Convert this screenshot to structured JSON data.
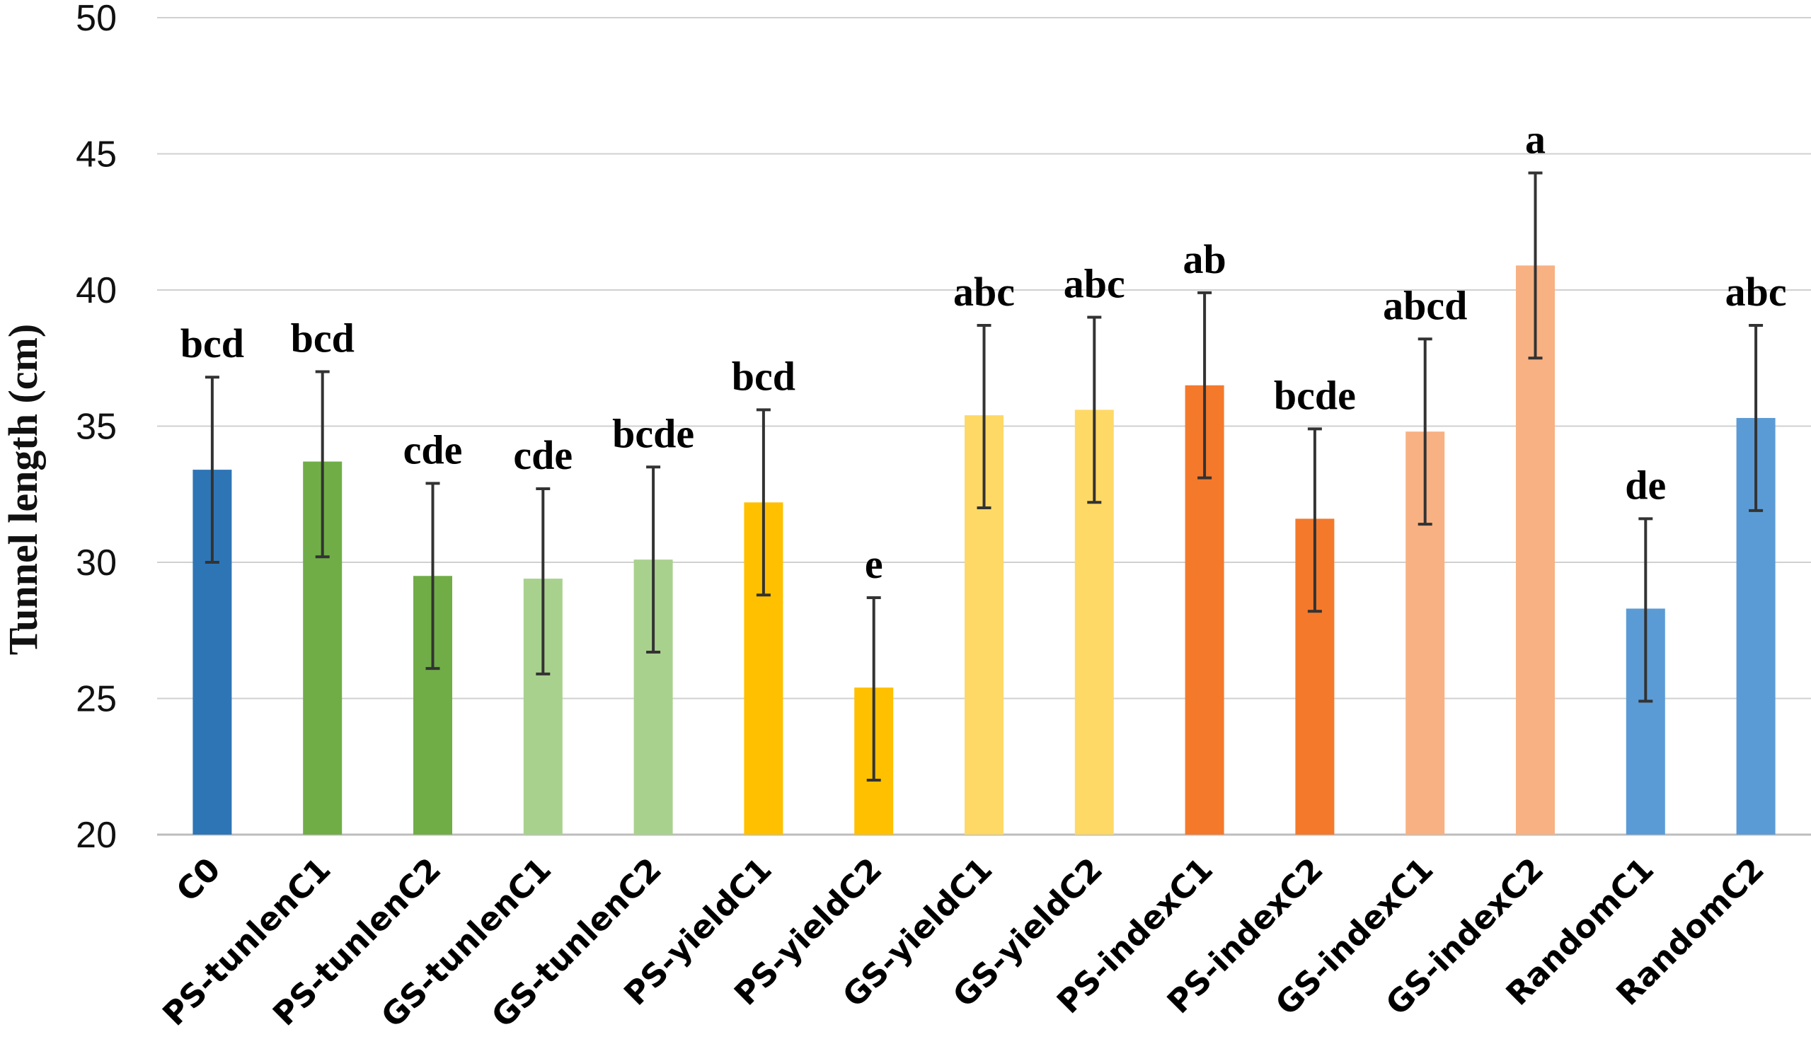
{
  "chart_data": {
    "type": "bar",
    "title": "",
    "xlabel": "",
    "ylabel": "Tunnel length (cm)",
    "ylim": [
      20,
      50
    ],
    "yticks": [
      20,
      25,
      30,
      35,
      40,
      45,
      50
    ],
    "grid": true,
    "categories": [
      "C0",
      "PS-tunlenC1",
      "PS-tunlenC2",
      "GS-tunlenC1",
      "GS-tunlenC2",
      "PS-yieldC1",
      "PS-yieldC2",
      "GS-yieldC1",
      "GS-yieldC2",
      "PS-indexC1",
      "PS-indexC2",
      "GS-indexC1",
      "GS-indexC2",
      "RandomC1",
      "RandomC2"
    ],
    "values": [
      33.4,
      33.7,
      29.5,
      29.4,
      30.1,
      32.2,
      25.4,
      35.4,
      35.6,
      36.5,
      31.6,
      34.8,
      40.9,
      28.3,
      35.3
    ],
    "error_lower": [
      30.0,
      30.2,
      26.1,
      25.9,
      26.7,
      28.8,
      22.0,
      32.0,
      32.2,
      33.1,
      28.2,
      31.4,
      37.5,
      24.9,
      31.9
    ],
    "error_upper": [
      36.8,
      37.0,
      32.9,
      32.7,
      33.5,
      35.6,
      28.7,
      38.7,
      39.0,
      39.9,
      34.9,
      38.2,
      44.3,
      31.6,
      38.7
    ],
    "significance_letters": [
      "bcd",
      "bcd",
      "cde",
      "cde",
      "bcde",
      "bcd",
      "e",
      "abc",
      "abc",
      "ab",
      "bcde",
      "abcd",
      "a",
      "de",
      "abc"
    ],
    "colors": [
      "#2E75B6",
      "#70AD47",
      "#70AD47",
      "#A9D18E",
      "#A9D18E",
      "#FFC000",
      "#FFC000",
      "#FFD966",
      "#FFD966",
      "#F4792B",
      "#F4792B",
      "#F8B183",
      "#F8B183",
      "#5B9BD5",
      "#5B9BD5"
    ]
  }
}
